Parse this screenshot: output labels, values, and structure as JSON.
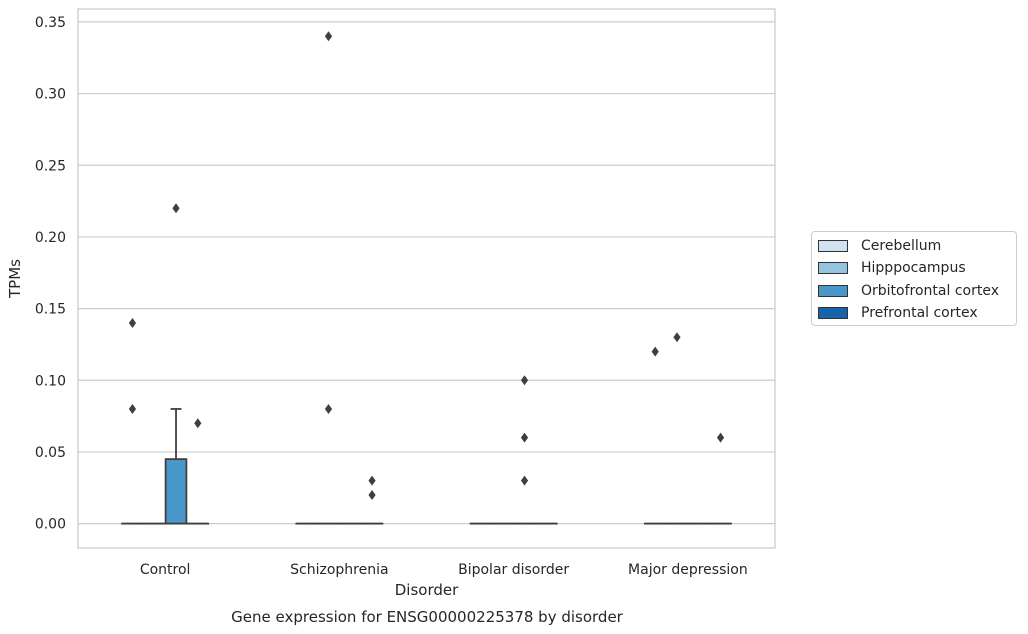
{
  "chart_data": {
    "type": "box",
    "title": "",
    "caption": "Gene expression for ENSG00000225378 by disorder",
    "xlabel": "Disorder",
    "ylabel": "TPMs",
    "ylim": [
      -0.017,
      0.359
    ],
    "yticks": [
      0.0,
      0.05,
      0.1,
      0.15,
      0.2,
      0.25,
      0.3,
      0.35
    ],
    "ytick_labels": [
      "0.00",
      "0.05",
      "0.10",
      "0.15",
      "0.20",
      "0.25",
      "0.30",
      "0.35"
    ],
    "categories": [
      "Control",
      "Schizophrenia",
      "Bipolar disorder",
      "Major depression"
    ],
    "grid": "horizontal",
    "legend_position": "right",
    "series": [
      {
        "name": "Cerebellum",
        "color": "#d0e1f2",
        "boxes": [
          {
            "q1": 0,
            "median": 0,
            "q3": 0,
            "whisker_low": 0,
            "whisker_high": 0,
            "outliers": [
              0.14,
              0.08
            ]
          },
          {
            "q1": 0,
            "median": 0,
            "q3": 0,
            "whisker_low": 0,
            "whisker_high": 0,
            "outliers": []
          },
          {
            "q1": 0,
            "median": 0,
            "q3": 0,
            "whisker_low": 0,
            "whisker_high": 0,
            "outliers": []
          },
          {
            "q1": 0,
            "median": 0,
            "q3": 0,
            "whisker_low": 0,
            "whisker_high": 0,
            "outliers": [
              0.12
            ]
          }
        ]
      },
      {
        "name": "Hipppocampus",
        "color": "#94c4df",
        "boxes": [
          {
            "q1": 0,
            "median": 0,
            "q3": 0,
            "whisker_low": 0,
            "whisker_high": 0,
            "outliers": []
          },
          {
            "q1": 0,
            "median": 0,
            "q3": 0,
            "whisker_low": 0,
            "whisker_high": 0,
            "outliers": [
              0.08,
              0.34
            ]
          },
          {
            "q1": 0,
            "median": 0,
            "q3": 0,
            "whisker_low": 0,
            "whisker_high": 0,
            "outliers": []
          },
          {
            "q1": 0,
            "median": 0,
            "q3": 0,
            "whisker_low": 0,
            "whisker_high": 0,
            "outliers": [
              0.13
            ]
          }
        ]
      },
      {
        "name": "Orbitofrontal cortex",
        "color": "#4a98c9",
        "boxes": [
          {
            "q1": 0,
            "median": 0,
            "q3": 0.045,
            "whisker_low": 0,
            "whisker_high": 0.08,
            "outliers": [
              0.22
            ]
          },
          {
            "q1": 0,
            "median": 0,
            "q3": 0,
            "whisker_low": 0,
            "whisker_high": 0,
            "outliers": []
          },
          {
            "q1": 0,
            "median": 0,
            "q3": 0,
            "whisker_low": 0,
            "whisker_high": 0,
            "outliers": [
              0.1,
              0.06,
              0.03
            ]
          },
          {
            "q1": 0,
            "median": 0,
            "q3": 0,
            "whisker_low": 0,
            "whisker_high": 0,
            "outliers": []
          }
        ]
      },
      {
        "name": "Prefrontal cortex",
        "color": "#1764ab",
        "boxes": [
          {
            "q1": 0,
            "median": 0,
            "q3": 0,
            "whisker_low": 0,
            "whisker_high": 0,
            "outliers": [
              0.07
            ]
          },
          {
            "q1": 0,
            "median": 0,
            "q3": 0,
            "whisker_low": 0,
            "whisker_high": 0,
            "outliers": [
              0.03,
              0.02
            ]
          },
          {
            "q1": 0,
            "median": 0,
            "q3": 0,
            "whisker_low": 0,
            "whisker_high": 0,
            "outliers": []
          },
          {
            "q1": 0,
            "median": 0,
            "q3": 0,
            "whisker_low": 0,
            "whisker_high": 0,
            "outliers": [
              0.06
            ]
          }
        ]
      }
    ]
  }
}
